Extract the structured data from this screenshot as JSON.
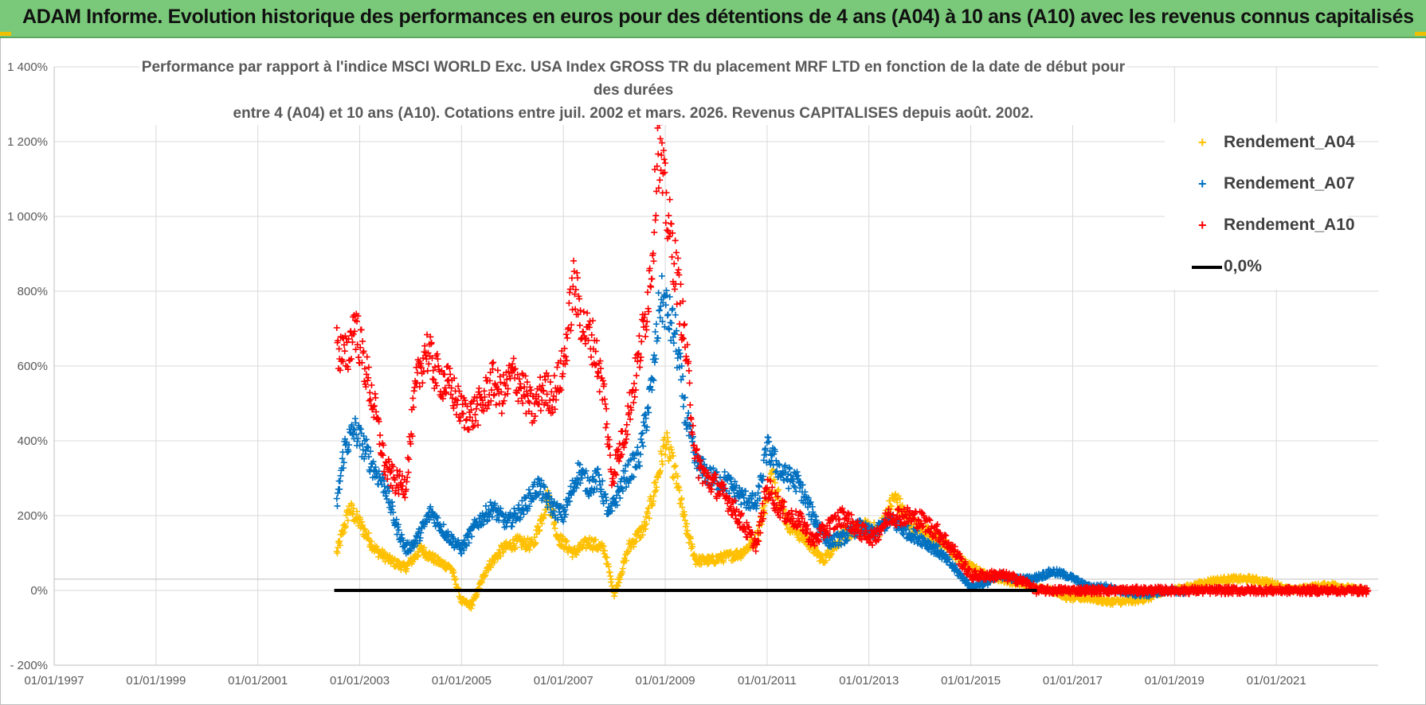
{
  "banner": {
    "title": "ADAM Informe. Evolution historique des performances en euros pour des détentions de 4 ans (A04) à 10 ans (A10) avec les revenus connus capitalisés"
  },
  "chart_data": {
    "type": "scatter",
    "title_line1": "Performance par rapport à l'indice MSCI WORLD Exc. USA Index GROSS TR  du placement MRF LTD en fonction de la date de début pour des durées",
    "title_line2": "entre 4 (A04) et 10 ans (A10). Cotations entre juil. 2002 et mars. 2026. Revenus CAPITALISES depuis août. 2002.",
    "xlabel": "",
    "ylabel": "",
    "ylim": [
      -200,
      1400
    ],
    "xlim": [
      1997.0,
      2023.0
    ],
    "grid": true,
    "legend_position": "top-right",
    "y_ticks": [
      {
        "value": -200,
        "label": "- 200%"
      },
      {
        "value": 0,
        "label": "0%"
      },
      {
        "value": 200,
        "label": "200%"
      },
      {
        "value": 400,
        "label": "400%"
      },
      {
        "value": 600,
        "label": "600%"
      },
      {
        "value": 800,
        "label": "800%"
      },
      {
        "value": 1000,
        "label": "1 000%"
      },
      {
        "value": 1200,
        "label": "1 200%"
      },
      {
        "value": 1400,
        "label": "1 400%"
      }
    ],
    "x_ticks": [
      {
        "value": 1997.0,
        "label": "01/01/1997"
      },
      {
        "value": 1999.0,
        "label": "01/01/1999"
      },
      {
        "value": 2001.0,
        "label": "01/01/2001"
      },
      {
        "value": 2003.0,
        "label": "01/01/2003"
      },
      {
        "value": 2005.0,
        "label": "01/01/2005"
      },
      {
        "value": 2007.0,
        "label": "01/01/2007"
      },
      {
        "value": 2009.0,
        "label": "01/01/2009"
      },
      {
        "value": 2011.0,
        "label": "01/01/2011"
      },
      {
        "value": 2013.0,
        "label": "01/01/2013"
      },
      {
        "value": 2015.0,
        "label": "01/01/2015"
      },
      {
        "value": 2017.0,
        "label": "01/01/2017"
      },
      {
        "value": 2019.0,
        "label": "01/01/2019"
      },
      {
        "value": 2021.0,
        "label": "01/01/2021"
      }
    ],
    "series": [
      {
        "name": "Rendement_A04",
        "color": "#ffc000",
        "marker": "+",
        "points": [
          [
            2002.55,
            100
          ],
          [
            2002.8,
            220
          ],
          [
            2003.0,
            180
          ],
          [
            2003.3,
            110
          ],
          [
            2003.6,
            80
          ],
          [
            2003.9,
            60
          ],
          [
            2004.2,
            110
          ],
          [
            2004.5,
            80
          ],
          [
            2004.8,
            60
          ],
          [
            2005.0,
            -30
          ],
          [
            2005.2,
            -40
          ],
          [
            2005.5,
            60
          ],
          [
            2005.8,
            110
          ],
          [
            2006.1,
            130
          ],
          [
            2006.4,
            120
          ],
          [
            2006.7,
            250
          ],
          [
            2006.9,
            140
          ],
          [
            2007.2,
            100
          ],
          [
            2007.5,
            130
          ],
          [
            2007.8,
            110
          ],
          [
            2008.0,
            -10
          ],
          [
            2008.3,
            120
          ],
          [
            2008.6,
            170
          ],
          [
            2008.85,
            300
          ],
          [
            2009.0,
            400
          ],
          [
            2009.2,
            310
          ],
          [
            2009.4,
            170
          ],
          [
            2009.6,
            80
          ],
          [
            2009.9,
            80
          ],
          [
            2010.2,
            90
          ],
          [
            2010.5,
            100
          ],
          [
            2010.8,
            140
          ],
          [
            2011.1,
            310
          ],
          [
            2011.4,
            180
          ],
          [
            2011.8,
            130
          ],
          [
            2012.1,
            80
          ],
          [
            2012.5,
            150
          ],
          [
            2012.9,
            170
          ],
          [
            2013.2,
            160
          ],
          [
            2013.5,
            250
          ],
          [
            2013.8,
            180
          ],
          [
            2014.1,
            160
          ],
          [
            2014.5,
            120
          ],
          [
            2014.9,
            70
          ],
          [
            2015.3,
            40
          ],
          [
            2015.6,
            30
          ],
          [
            2015.9,
            20
          ],
          [
            2016.2,
            10
          ],
          [
            2016.6,
            0
          ],
          [
            2016.9,
            -20
          ],
          [
            2017.3,
            -20
          ],
          [
            2017.7,
            -30
          ],
          [
            2018.1,
            -30
          ],
          [
            2018.5,
            -20
          ],
          [
            2018.9,
            0
          ],
          [
            2019.3,
            10
          ],
          [
            2019.7,
            25
          ],
          [
            2020.1,
            30
          ],
          [
            2020.5,
            30
          ],
          [
            2020.9,
            20
          ],
          [
            2021.3,
            0
          ],
          [
            2021.7,
            10
          ],
          [
            2022.1,
            15
          ],
          [
            2022.5,
            5
          ],
          [
            2022.7,
            0
          ]
        ]
      },
      {
        "name": "Rendement_A07",
        "color": "#0070c0",
        "marker": "+",
        "points": [
          [
            2002.55,
            230
          ],
          [
            2002.7,
            380
          ],
          [
            2002.9,
            430
          ],
          [
            2003.1,
            380
          ],
          [
            2003.3,
            320
          ],
          [
            2003.5,
            280
          ],
          [
            2003.7,
            180
          ],
          [
            2003.9,
            110
          ],
          [
            2004.1,
            130
          ],
          [
            2004.4,
            210
          ],
          [
            2004.7,
            150
          ],
          [
            2005.0,
            110
          ],
          [
            2005.3,
            180
          ],
          [
            2005.6,
            220
          ],
          [
            2005.9,
            180
          ],
          [
            2006.2,
            220
          ],
          [
            2006.5,
            280
          ],
          [
            2006.8,
            220
          ],
          [
            2007.0,
            200
          ],
          [
            2007.3,
            320
          ],
          [
            2007.5,
            280
          ],
          [
            2007.7,
            300
          ],
          [
            2007.9,
            200
          ],
          [
            2008.2,
            300
          ],
          [
            2008.5,
            360
          ],
          [
            2008.75,
            560
          ],
          [
            2008.9,
            780
          ],
          [
            2009.0,
            760
          ],
          [
            2009.2,
            680
          ],
          [
            2009.4,
            470
          ],
          [
            2009.6,
            340
          ],
          [
            2009.9,
            300
          ],
          [
            2010.2,
            290
          ],
          [
            2010.5,
            250
          ],
          [
            2010.8,
            230
          ],
          [
            2011.0,
            380
          ],
          [
            2011.3,
            310
          ],
          [
            2011.6,
            290
          ],
          [
            2011.9,
            200
          ],
          [
            2012.2,
            130
          ],
          [
            2012.5,
            140
          ],
          [
            2012.8,
            170
          ],
          [
            2013.1,
            150
          ],
          [
            2013.4,
            190
          ],
          [
            2013.7,
            160
          ],
          [
            2014.0,
            140
          ],
          [
            2014.4,
            100
          ],
          [
            2014.8,
            40
          ],
          [
            2015.0,
            10
          ],
          [
            2015.3,
            20
          ],
          [
            2015.6,
            40
          ],
          [
            2015.9,
            30
          ],
          [
            2016.2,
            30
          ],
          [
            2016.6,
            50
          ],
          [
            2016.9,
            40
          ],
          [
            2017.3,
            10
          ],
          [
            2017.7,
            10
          ],
          [
            2018.1,
            -10
          ],
          [
            2018.5,
            -10
          ],
          [
            2018.9,
            0
          ],
          [
            2019.2,
            -5
          ]
        ]
      },
      {
        "name": "Rendement_A10",
        "color": "#ff0000",
        "marker": "+",
        "points": [
          [
            2002.55,
            650
          ],
          [
            2002.75,
            620
          ],
          [
            2002.9,
            720
          ],
          [
            2003.1,
            600
          ],
          [
            2003.3,
            480
          ],
          [
            2003.5,
            330
          ],
          [
            2003.7,
            290
          ],
          [
            2003.9,
            280
          ],
          [
            2004.1,
            540
          ],
          [
            2004.3,
            650
          ],
          [
            2004.5,
            580
          ],
          [
            2004.8,
            540
          ],
          [
            2005.0,
            480
          ],
          [
            2005.2,
            470
          ],
          [
            2005.4,
            500
          ],
          [
            2005.6,
            560
          ],
          [
            2005.8,
            520
          ],
          [
            2006.0,
            580
          ],
          [
            2006.2,
            540
          ],
          [
            2006.4,
            480
          ],
          [
            2006.6,
            540
          ],
          [
            2006.8,
            520
          ],
          [
            2007.0,
            600
          ],
          [
            2007.2,
            820
          ],
          [
            2007.4,
            700
          ],
          [
            2007.6,
            660
          ],
          [
            2007.8,
            520
          ],
          [
            2007.95,
            300
          ],
          [
            2008.2,
            420
          ],
          [
            2008.4,
            560
          ],
          [
            2008.6,
            720
          ],
          [
            2008.75,
            900
          ],
          [
            2008.85,
            1200
          ],
          [
            2009.0,
            1050
          ],
          [
            2009.1,
            950
          ],
          [
            2009.25,
            820
          ],
          [
            2009.4,
            650
          ],
          [
            2009.6,
            350
          ],
          [
            2009.8,
            300
          ],
          [
            2010.0,
            280
          ],
          [
            2010.3,
            230
          ],
          [
            2010.6,
            160
          ],
          [
            2010.8,
            120
          ],
          [
            2011.0,
            280
          ],
          [
            2011.2,
            230
          ],
          [
            2011.4,
            200
          ],
          [
            2011.7,
            180
          ],
          [
            2011.9,
            130
          ],
          [
            2012.2,
            170
          ],
          [
            2012.5,
            200
          ],
          [
            2012.8,
            160
          ],
          [
            2013.1,
            140
          ],
          [
            2013.4,
            200
          ],
          [
            2013.7,
            200
          ],
          [
            2014.0,
            190
          ],
          [
            2014.4,
            150
          ],
          [
            2014.7,
            100
          ],
          [
            2015.0,
            40
          ],
          [
            2015.3,
            40
          ],
          [
            2015.6,
            40
          ],
          [
            2015.9,
            30
          ],
          [
            2016.1,
            20
          ],
          [
            2016.3,
            0
          ],
          [
            2017.0,
            0
          ],
          [
            2018.0,
            0
          ],
          [
            2019.0,
            0
          ],
          [
            2020.0,
            0
          ],
          [
            2021.0,
            0
          ],
          [
            2022.0,
            0
          ],
          [
            2022.8,
            0
          ]
        ]
      },
      {
        "name": "0,0%",
        "color": "#000000",
        "marker": "line",
        "points": [
          [
            2002.5,
            0
          ],
          [
            2016.3,
            0
          ]
        ]
      }
    ]
  }
}
